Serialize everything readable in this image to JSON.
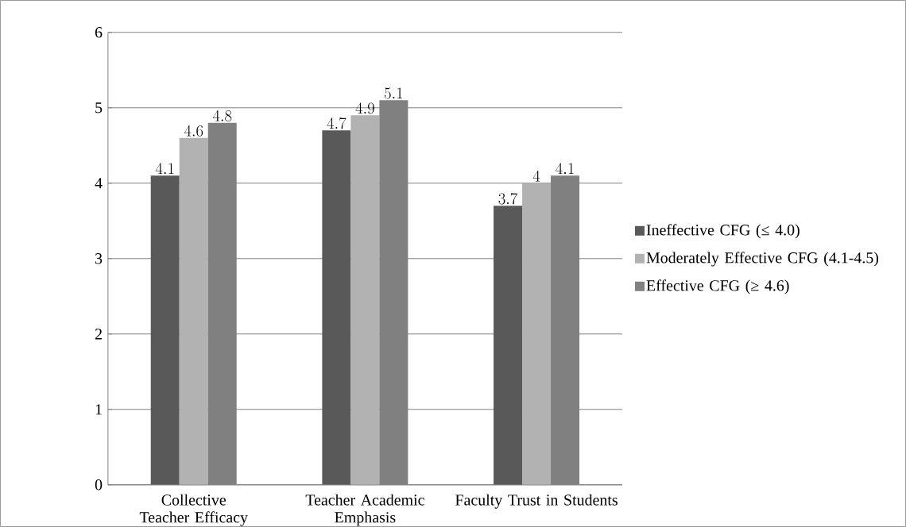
{
  "chart_data": {
    "type": "bar",
    "categories": [
      "Collective Teacher Efficacy",
      "Teacher Academic Emphasis",
      "Faculty Trust in Students"
    ],
    "series": [
      {
        "name": "Ineffective CFG (≤ 4.0)",
        "color": "#595959",
        "values": [
          4.1,
          4.7,
          3.7
        ]
      },
      {
        "name": "Moderately Effective CFG (4.1-4.5)",
        "color": "#b2b2b2",
        "values": [
          4.6,
          4.9,
          4.0
        ]
      },
      {
        "name": "Effective CFG (≥ 4.6)",
        "color": "#808080",
        "values": [
          4.8,
          5.1,
          4.1
        ]
      }
    ],
    "ylim": [
      0,
      6
    ],
    "yticks": [
      0,
      1,
      2,
      3,
      4,
      5,
      6
    ],
    "grid": "y",
    "legend": "right",
    "data_labels": true
  }
}
